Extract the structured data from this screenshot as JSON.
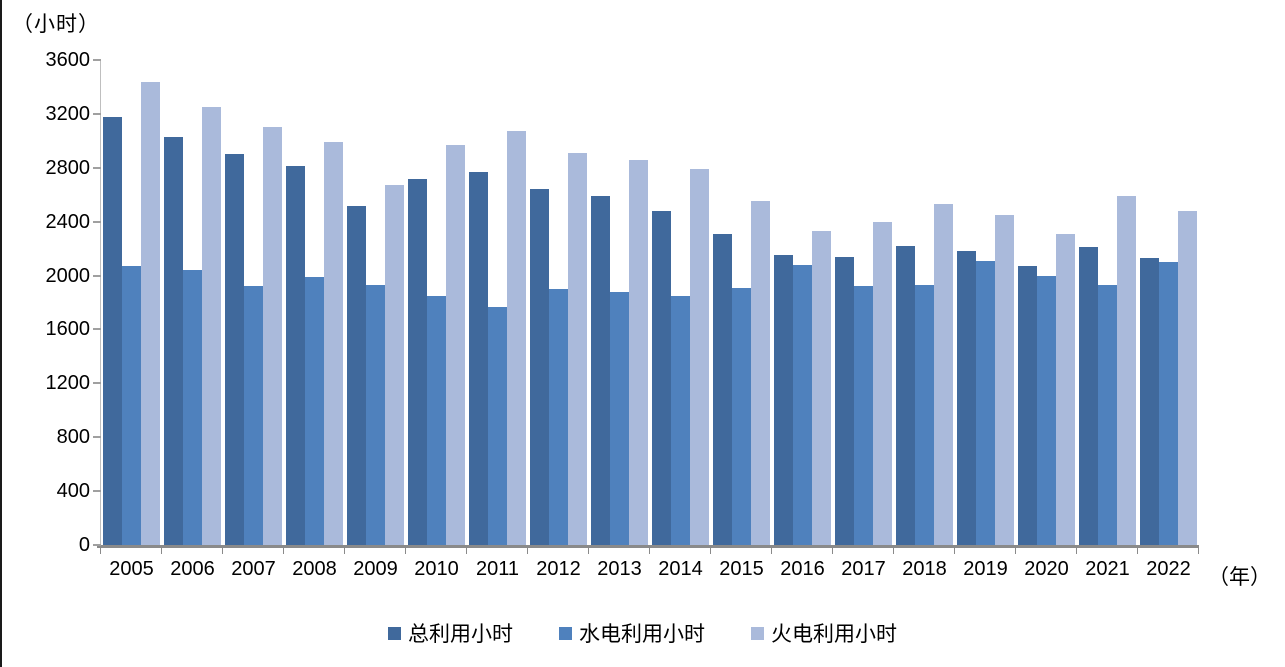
{
  "y_axis_unit_label": "（小时）",
  "x_axis_unit_label": "（年）",
  "chart_data": {
    "type": "bar",
    "title": "",
    "xlabel": "（年）",
    "ylabel": "（小时）",
    "categories": [
      "2005",
      "2006",
      "2007",
      "2008",
      "2009",
      "2010",
      "2011",
      "2012",
      "2013",
      "2014",
      "2015",
      "2016",
      "2017",
      "2018",
      "2019",
      "2020",
      "2021",
      "2022"
    ],
    "series": [
      {
        "id": "total",
        "name": "总利用小时",
        "color": "#40699C",
        "values": [
          3180,
          3030,
          2900,
          2810,
          2520,
          2720,
          2770,
          2640,
          2590,
          2480,
          2310,
          2150,
          2140,
          2220,
          2180,
          2070,
          2210,
          2130
        ]
      },
      {
        "id": "hydro",
        "name": "水电利用小时",
        "color": "#4F81BD",
        "values": [
          2070,
          2040,
          1920,
          1990,
          1930,
          1850,
          1770,
          1900,
          1880,
          1850,
          1910,
          2080,
          1920,
          1930,
          2110,
          2000,
          1930,
          2100
        ]
      },
      {
        "id": "thermal",
        "name": "火电利用小时",
        "color": "#AABADB",
        "values": [
          3440,
          3250,
          3100,
          2990,
          2670,
          2970,
          3070,
          2910,
          2860,
          2790,
          2550,
          2330,
          2400,
          2530,
          2450,
          2310,
          2590,
          2480
        ]
      }
    ],
    "ylim": [
      0,
      3600
    ],
    "yticks": [
      0,
      400,
      800,
      1200,
      1600,
      2000,
      2400,
      2800,
      3200,
      3600
    ],
    "grid": false,
    "legend_position": "bottom"
  }
}
